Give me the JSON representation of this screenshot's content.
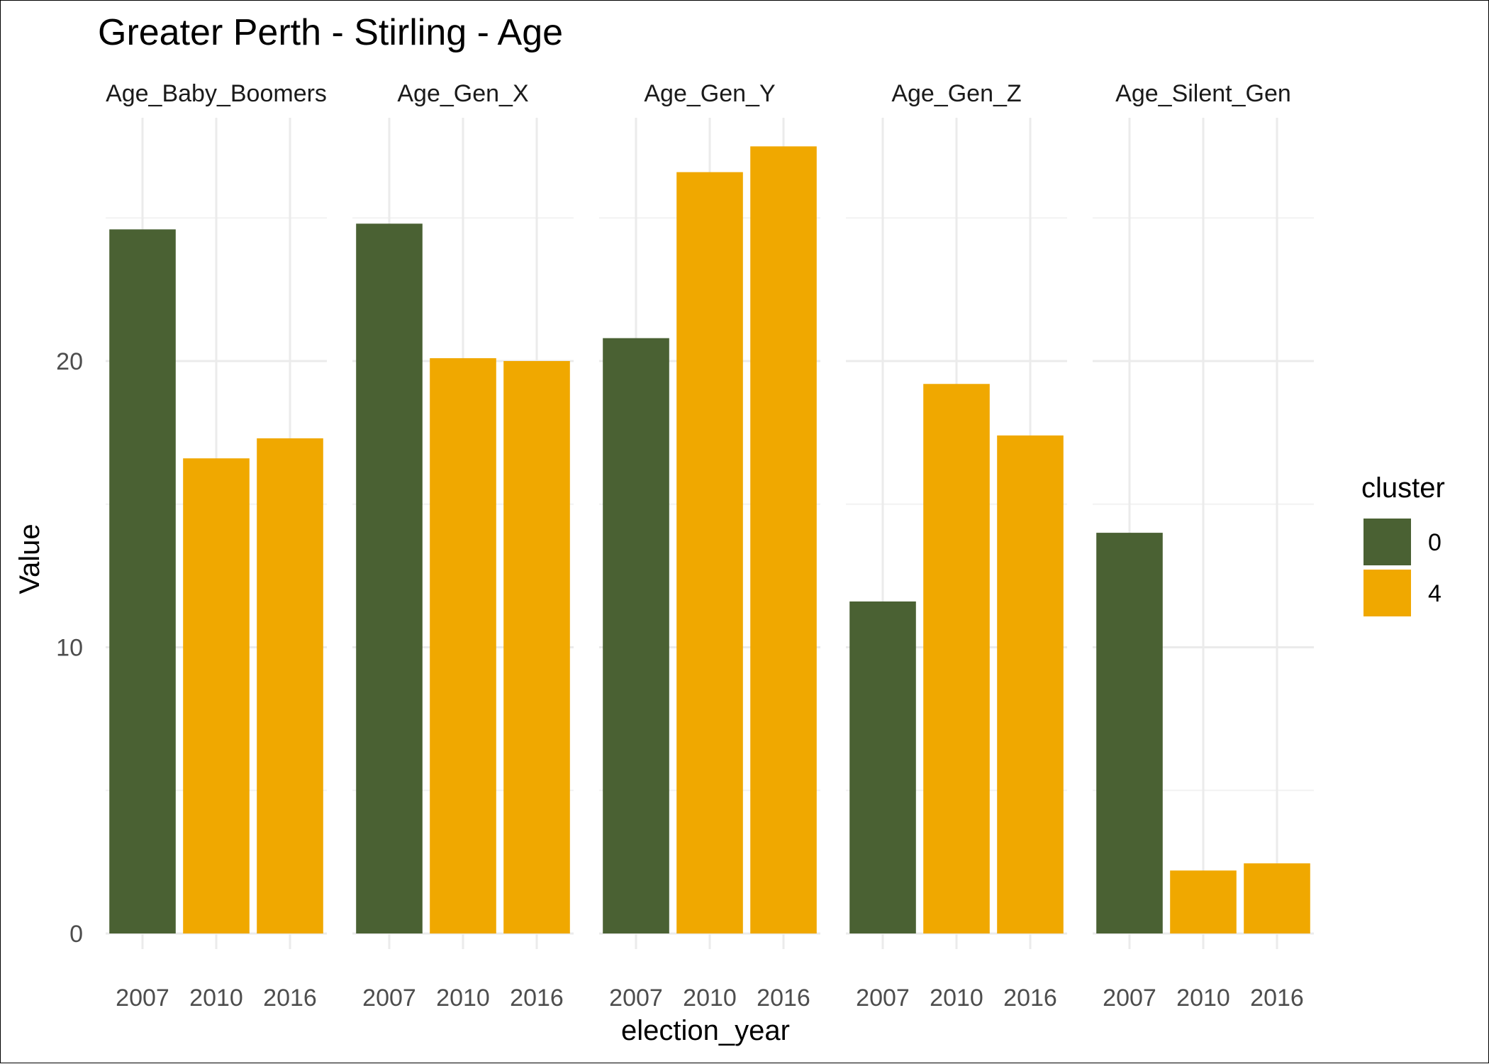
{
  "chart_data": {
    "type": "bar",
    "title": "Greater Perth - Stirling - Age",
    "xlabel": "election_year",
    "ylabel": "Value",
    "ylim": [
      0,
      28.5
    ],
    "yticks": [
      0,
      10,
      20
    ],
    "grid": true,
    "legend": {
      "title": "cluster",
      "position": "right",
      "entries": [
        {
          "label": "0",
          "color": "#4a6133"
        },
        {
          "label": "4",
          "color": "#f0a800"
        }
      ]
    },
    "categories": [
      "2007",
      "2010",
      "2016"
    ],
    "panels": [
      {
        "name": "Age_Baby_Boomers",
        "values": [
          24.6,
          16.6,
          17.3
        ],
        "clusters": [
          "0",
          "4",
          "4"
        ]
      },
      {
        "name": "Age_Gen_X",
        "values": [
          24.8,
          20.1,
          20.0
        ],
        "clusters": [
          "0",
          "4",
          "4"
        ]
      },
      {
        "name": "Age_Gen_Y",
        "values": [
          20.8,
          26.6,
          27.5
        ],
        "clusters": [
          "0",
          "4",
          "4"
        ]
      },
      {
        "name": "Age_Gen_Z",
        "values": [
          11.6,
          19.2,
          17.4
        ],
        "clusters": [
          "0",
          "4",
          "4"
        ]
      },
      {
        "name": "Age_Silent_Gen",
        "values": [
          14.0,
          2.2,
          2.45
        ],
        "clusters": [
          "0",
          "4",
          "4"
        ]
      }
    ]
  }
}
